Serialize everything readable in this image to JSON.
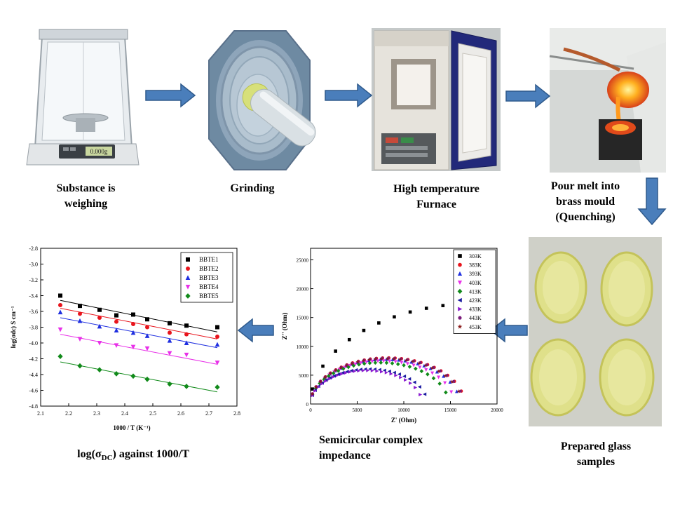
{
  "steps": {
    "weighing": {
      "line1": "Substance is",
      "line2": "weighing"
    },
    "grinding": {
      "line1": "Grinding"
    },
    "furnace": {
      "line1": "High temperature",
      "line2": "Furnace"
    },
    "pour": {
      "line1": "Pour melt into",
      "line2": "brass mould",
      "line3": "(Quenching)"
    },
    "samples": {
      "line1": "Prepared glass",
      "line2": "samples"
    },
    "impedance": {
      "line1": "Semicircular complex",
      "line2": "impedance"
    },
    "conductivity": {
      "pre": "log(σ",
      "sub": "DC",
      "post": ") against 1000/T"
    }
  },
  "balance": {
    "display": "0.000g"
  },
  "colors": {
    "arrow_fill": "#4a7ebb",
    "arrow_stroke": "#2f5a8c"
  },
  "chart_data": [
    {
      "type": "scatter",
      "title": "",
      "xlabel": "1000 / T (K⁻¹)",
      "ylabel": "log(σdc) S cm⁻¹",
      "xlim": [
        2.1,
        2.8
      ],
      "ylim": [
        -4.8,
        -2.8
      ],
      "xticks": [
        "2.1",
        "2.2",
        "2.3",
        "2.4",
        "2.5",
        "2.6",
        "2.7",
        "2.8"
      ],
      "yticks": [
        "-2.8",
        "-3.0",
        "-3.2",
        "-3.4",
        "-3.6",
        "-3.8",
        "-4.0",
        "-4.2",
        "-4.4",
        "-4.6",
        "-4.8"
      ],
      "legend_position": "top-right",
      "x": [
        2.17,
        2.24,
        2.31,
        2.37,
        2.43,
        2.48,
        2.56,
        2.62,
        2.73
      ],
      "series": [
        {
          "name": "BBTE1",
          "color": "#000000",
          "marker": "square",
          "values": [
            -3.4,
            -3.53,
            -3.58,
            -3.65,
            -3.64,
            -3.7,
            -3.75,
            -3.78,
            -3.8
          ],
          "fit": [
            -3.46,
            -3.86
          ]
        },
        {
          "name": "BBTE2",
          "color": "#e8141c",
          "marker": "circle",
          "values": [
            -3.52,
            -3.63,
            -3.68,
            -3.73,
            -3.76,
            -3.8,
            -3.87,
            -3.89,
            -3.92
          ],
          "fit": [
            -3.56,
            -3.95
          ]
        },
        {
          "name": "BBTE3",
          "color": "#1f2fe0",
          "marker": "triangle-up",
          "values": [
            -3.61,
            -3.72,
            -3.79,
            -3.84,
            -3.87,
            -3.91,
            -3.97,
            -4.0,
            -4.02
          ],
          "fit": [
            -3.68,
            -4.06
          ]
        },
        {
          "name": "BBTE4",
          "color": "#e830e8",
          "marker": "triangle-down",
          "values": [
            -3.83,
            -3.95,
            -4.0,
            -4.03,
            -4.05,
            -4.07,
            -4.13,
            -4.15,
            -4.25
          ],
          "fit": [
            -3.89,
            -4.27
          ]
        },
        {
          "name": "BBTE5",
          "color": "#118a1a",
          "marker": "diamond",
          "values": [
            -4.17,
            -4.29,
            -4.34,
            -4.39,
            -4.42,
            -4.46,
            -4.52,
            -4.55,
            -4.56
          ],
          "fit": [
            -4.24,
            -4.62
          ]
        }
      ]
    },
    {
      "type": "scatter",
      "title": "",
      "xlabel": "Z' (Ohm)",
      "ylabel": "Z'' (Ohm)",
      "xlim": [
        0,
        20000
      ],
      "ylim": [
        0,
        27000
      ],
      "xticks": [
        "0",
        "5000",
        "10000",
        "15000",
        "20000"
      ],
      "yticks": [
        "0",
        "5000",
        "10000",
        "15000",
        "20000",
        "25000"
      ],
      "legend_position": "top-right",
      "series": [
        {
          "name": "303K",
          "color": "#000000",
          "marker": "square",
          "R": 36000
        },
        {
          "name": "383K",
          "color": "#e8141c",
          "marker": "circle",
          "R": 16500
        },
        {
          "name": "393K",
          "color": "#1f2fe0",
          "marker": "triangle-up",
          "R": 16000
        },
        {
          "name": "403K",
          "color": "#e830e8",
          "marker": "triangle-down",
          "R": 15400
        },
        {
          "name": "413K",
          "color": "#118a1a",
          "marker": "diamond",
          "R": 14800
        },
        {
          "name": "423K",
          "color": "#1a1aa0",
          "marker": "triangle-left",
          "R": 12500
        },
        {
          "name": "433K",
          "color": "#8a1ad0",
          "marker": "triangle-right",
          "R": 12000
        },
        {
          "name": "443K",
          "color": "#7a1a7a",
          "marker": "hexagon",
          "R": 16400
        },
        {
          "name": "453K",
          "color": "#8a1a1a",
          "marker": "star",
          "R": 16200
        }
      ]
    }
  ]
}
